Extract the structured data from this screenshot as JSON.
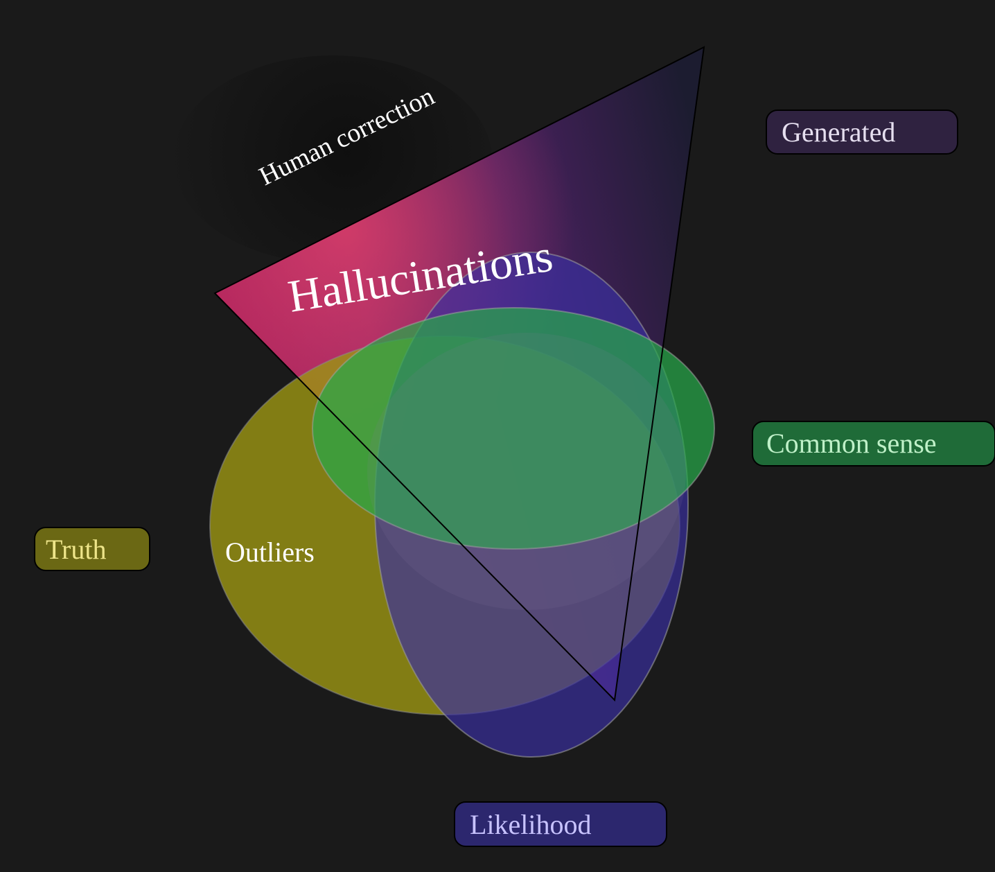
{
  "diagram": {
    "sets": [
      {
        "id": "truth",
        "legend": "Truth",
        "inner_label": "Outliers",
        "color": "#9a9414",
        "legend_fill": "#6b6814",
        "legend_text": "#eee58a"
      },
      {
        "id": "common_sense",
        "legend": "Common sense",
        "color": "#27a84a",
        "legend_fill": "#1f6b38",
        "legend_text": "#bff0c8"
      },
      {
        "id": "likelihood",
        "legend": "Likelihood",
        "color": "#3a2fa0",
        "legend_fill": "#2c276e",
        "legend_text": "#c8c3ff"
      },
      {
        "id": "generated",
        "legend": "Generated",
        "color": "#d63a6a",
        "legend_fill": "#2f2240",
        "legend_text": "#e6dff0"
      }
    ],
    "region_labels": {
      "hallucinations": "Hallucinations",
      "human_correction": "Human correction"
    },
    "colors": {
      "background": "#1a1a1a",
      "generated_edge": "#1c1c30",
      "outline": "#000000"
    }
  }
}
